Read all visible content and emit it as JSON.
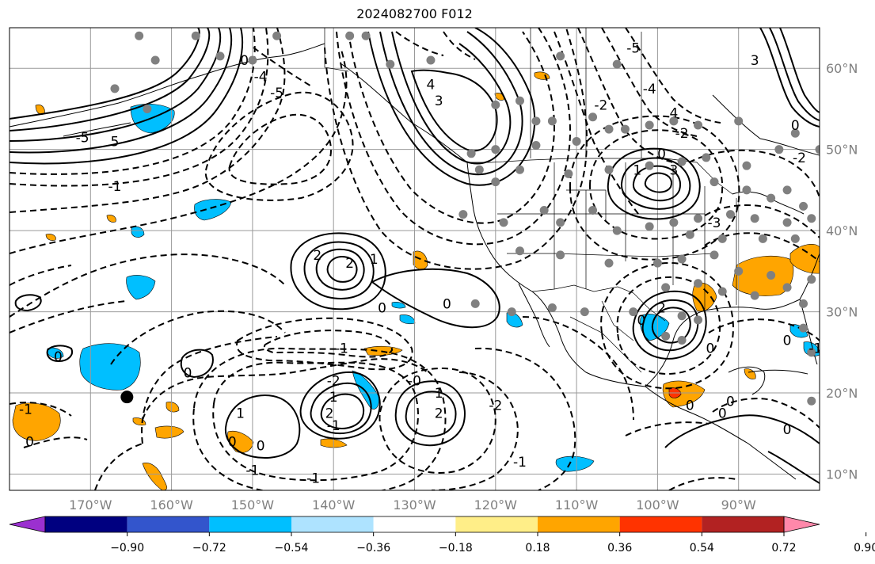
{
  "title": "2024082700 F012",
  "map": {
    "longitude_labels": [
      "170°W",
      "160°W",
      "150°W",
      "140°W",
      "130°W",
      "120°W",
      "110°W",
      "100°W",
      "90°W"
    ],
    "latitude_labels": [
      "60°N",
      "50°N",
      "40°N",
      "30°N",
      "20°N",
      "10°N"
    ],
    "longitudes": [
      -170,
      -160,
      -150,
      -140,
      -130,
      -120,
      -110,
      -100,
      -90
    ],
    "latitudes": [
      60,
      50,
      40,
      30,
      20,
      10
    ],
    "lon_range": [
      -180,
      -80
    ],
    "lat_range": [
      8,
      65
    ],
    "grid": true
  },
  "colorbar": {
    "tick_labels": [
      "−0.90",
      "−0.72",
      "−0.54",
      "−0.36",
      "−0.18",
      "0.18",
      "0.36",
      "0.54",
      "0.72",
      "0.90"
    ],
    "colors": [
      "#9b30d0",
      "#000080",
      "#3355cc",
      "#00bfff",
      "#aee3ff",
      "#ffffff",
      "#ffee88",
      "#ffa500",
      "#ff3300",
      "#b22222",
      "#ff88aa"
    ],
    "extend": "both"
  },
  "contour_labels": [
    {
      "text": "5",
      "lon": -167,
      "lat": 51
    },
    {
      "text": "-5",
      "lon": -171,
      "lat": 51.5
    },
    {
      "text": "-1",
      "lon": -167,
      "lat": 45.5
    },
    {
      "text": "0",
      "lon": -151,
      "lat": 61
    },
    {
      "text": "-5",
      "lon": -147,
      "lat": 57
    },
    {
      "text": "-4",
      "lon": -149,
      "lat": 59
    },
    {
      "text": "4",
      "lon": -128,
      "lat": 58
    },
    {
      "text": "3",
      "lon": -127,
      "lat": 56
    },
    {
      "text": "-5",
      "lon": -103,
      "lat": 62.5
    },
    {
      "text": "-4",
      "lon": -101,
      "lat": 57.5
    },
    {
      "text": "-2",
      "lon": -107,
      "lat": 55.5
    },
    {
      "text": "4",
      "lon": -98,
      "lat": 54.5
    },
    {
      "text": "-2",
      "lon": -97,
      "lat": 52
    },
    {
      "text": "0",
      "lon": -99.5,
      "lat": 49.5
    },
    {
      "text": "1",
      "lon": -102.5,
      "lat": 47.5
    },
    {
      "text": "3",
      "lon": -98,
      "lat": 47.5
    },
    {
      "text": "-3",
      "lon": -93,
      "lat": 41
    },
    {
      "text": "3",
      "lon": -88,
      "lat": 61
    },
    {
      "text": "0",
      "lon": -83,
      "lat": 53
    },
    {
      "text": "-2",
      "lon": -82.5,
      "lat": 49
    },
    {
      "text": "2",
      "lon": -142,
      "lat": 37
    },
    {
      "text": "2",
      "lon": -138,
      "lat": 36
    },
    {
      "text": "1",
      "lon": -135,
      "lat": 36.5
    },
    {
      "text": "0",
      "lon": -134,
      "lat": 30.5
    },
    {
      "text": "0",
      "lon": -126,
      "lat": 31
    },
    {
      "text": "-1",
      "lon": -139,
      "lat": 25.5
    },
    {
      "text": "-2",
      "lon": -140,
      "lat": 21.5
    },
    {
      "text": "1",
      "lon": -140,
      "lat": 19.5
    },
    {
      "text": "2",
      "lon": -140.5,
      "lat": 17.5
    },
    {
      "text": "-1",
      "lon": -140,
      "lat": 16
    },
    {
      "text": "1",
      "lon": -151.5,
      "lat": 17.5
    },
    {
      "text": "0",
      "lon": -152.5,
      "lat": 14
    },
    {
      "text": "0",
      "lon": -149,
      "lat": 13.5
    },
    {
      "text": "-1",
      "lon": -150,
      "lat": 10.5
    },
    {
      "text": "-1",
      "lon": -142.5,
      "lat": 9.5
    },
    {
      "text": "-0",
      "lon": -130,
      "lat": 21.5
    },
    {
      "text": "1",
      "lon": -127,
      "lat": 20
    },
    {
      "text": "2",
      "lon": -127,
      "lat": 17.5
    },
    {
      "text": "-2",
      "lon": -120,
      "lat": 18.5
    },
    {
      "text": "-1",
      "lon": -117,
      "lat": 11.5
    },
    {
      "text": "2",
      "lon": -99.5,
      "lat": 30.5
    },
    {
      "text": "0",
      "lon": -102,
      "lat": 29
    },
    {
      "text": "0",
      "lon": -93.5,
      "lat": 25.5
    },
    {
      "text": "0",
      "lon": -84,
      "lat": 26.5
    },
    {
      "text": "-1",
      "lon": -80.5,
      "lat": 25.5
    },
    {
      "text": "-1",
      "lon": -178,
      "lat": 18
    },
    {
      "text": "0",
      "lon": -177.5,
      "lat": 14
    },
    {
      "text": "0",
      "lon": -174,
      "lat": 24.5
    },
    {
      "text": "0",
      "lon": -158,
      "lat": 22.5
    },
    {
      "text": "0",
      "lon": -96,
      "lat": 18.5
    },
    {
      "text": "0",
      "lon": -91,
      "lat": 19
    },
    {
      "text": "0",
      "lon": -92,
      "lat": 17.5
    },
    {
      "text": "0",
      "lon": -84,
      "lat": 15.5
    }
  ],
  "stations": [
    {
      "lon": -164,
      "lat": 64
    },
    {
      "lon": -162,
      "lat": 61
    },
    {
      "lon": -167,
      "lat": 57.5
    },
    {
      "lon": -157,
      "lat": 64
    },
    {
      "lon": -138,
      "lat": 64
    },
    {
      "lon": -136,
      "lat": 64
    },
    {
      "lon": -147,
      "lat": 64
    },
    {
      "lon": -163,
      "lat": 55
    },
    {
      "lon": -154,
      "lat": 61.5
    },
    {
      "lon": -150,
      "lat": 61
    },
    {
      "lon": -133,
      "lat": 60.5
    },
    {
      "lon": -128,
      "lat": 61
    },
    {
      "lon": -112,
      "lat": 61.5
    },
    {
      "lon": -105,
      "lat": 60.5
    },
    {
      "lon": -120,
      "lat": 55.5
    },
    {
      "lon": -117,
      "lat": 56
    },
    {
      "lon": -115,
      "lat": 53.5
    },
    {
      "lon": -113,
      "lat": 53.5
    },
    {
      "lon": -108,
      "lat": 54
    },
    {
      "lon": -106,
      "lat": 52.5
    },
    {
      "lon": -104,
      "lat": 52.5
    },
    {
      "lon": -101,
      "lat": 53
    },
    {
      "lon": -98,
      "lat": 53.5
    },
    {
      "lon": -95,
      "lat": 53
    },
    {
      "lon": -90,
      "lat": 53.5
    },
    {
      "lon": -83,
      "lat": 52
    },
    {
      "lon": -85,
      "lat": 50
    },
    {
      "lon": -80,
      "lat": 50
    },
    {
      "lon": -94,
      "lat": 49
    },
    {
      "lon": -89,
      "lat": 48
    },
    {
      "lon": -123,
      "lat": 49.5
    },
    {
      "lon": -120,
      "lat": 50
    },
    {
      "lon": -115,
      "lat": 50.5
    },
    {
      "lon": -110,
      "lat": 51
    },
    {
      "lon": -122,
      "lat": 47.5
    },
    {
      "lon": -117,
      "lat": 47.5
    },
    {
      "lon": -111,
      "lat": 47
    },
    {
      "lon": -106,
      "lat": 47.5
    },
    {
      "lon": -101,
      "lat": 48
    },
    {
      "lon": -97,
      "lat": 48.5
    },
    {
      "lon": -93,
      "lat": 46
    },
    {
      "lon": -89,
      "lat": 45
    },
    {
      "lon": -86,
      "lat": 44
    },
    {
      "lon": -84,
      "lat": 45
    },
    {
      "lon": -82,
      "lat": 43
    },
    {
      "lon": -120,
      "lat": 46
    },
    {
      "lon": -124,
      "lat": 42
    },
    {
      "lon": -119,
      "lat": 41
    },
    {
      "lon": -114,
      "lat": 42.5
    },
    {
      "lon": -112,
      "lat": 41
    },
    {
      "lon": -108,
      "lat": 42.5
    },
    {
      "lon": -105,
      "lat": 40
    },
    {
      "lon": -101,
      "lat": 40.5
    },
    {
      "lon": -98,
      "lat": 41
    },
    {
      "lon": -95,
      "lat": 41.5
    },
    {
      "lon": -91,
      "lat": 42
    },
    {
      "lon": -88,
      "lat": 41.5
    },
    {
      "lon": -84,
      "lat": 41
    },
    {
      "lon": -81,
      "lat": 41.5
    },
    {
      "lon": -96,
      "lat": 39.5
    },
    {
      "lon": -92,
      "lat": 39
    },
    {
      "lon": -87,
      "lat": 39
    },
    {
      "lon": -83,
      "lat": 39
    },
    {
      "lon": -117,
      "lat": 37.5
    },
    {
      "lon": -112,
      "lat": 37
    },
    {
      "lon": -106,
      "lat": 36
    },
    {
      "lon": -100,
      "lat": 36
    },
    {
      "lon": -97,
      "lat": 36.5
    },
    {
      "lon": -93,
      "lat": 37
    },
    {
      "lon": -90,
      "lat": 35
    },
    {
      "lon": -86,
      "lat": 34.5
    },
    {
      "lon": -84,
      "lat": 33
    },
    {
      "lon": -81,
      "lat": 34
    },
    {
      "lon": -99,
      "lat": 33
    },
    {
      "lon": -95,
      "lat": 33.5
    },
    {
      "lon": -92,
      "lat": 32.5
    },
    {
      "lon": -88,
      "lat": 32
    },
    {
      "lon": -82,
      "lat": 31
    },
    {
      "lon": -122.5,
      "lat": 31
    },
    {
      "lon": -118,
      "lat": 30
    },
    {
      "lon": -113,
      "lat": 30.5
    },
    {
      "lon": -109,
      "lat": 30
    },
    {
      "lon": -103,
      "lat": 30
    },
    {
      "lon": -97,
      "lat": 29.5
    },
    {
      "lon": -95,
      "lat": 29
    },
    {
      "lon": -82,
      "lat": 28
    },
    {
      "lon": -81,
      "lat": 25
    },
    {
      "lon": -99,
      "lat": 27
    },
    {
      "lon": -97,
      "lat": 26.5
    },
    {
      "lon": -81,
      "lat": 19
    }
  ],
  "marker": {
    "lon": -165.5,
    "lat": 19.5
  }
}
